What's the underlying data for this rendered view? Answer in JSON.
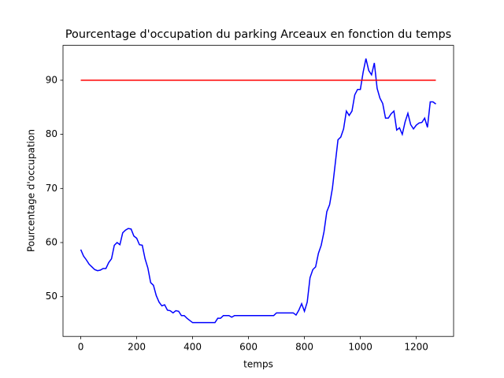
{
  "chart_data": {
    "type": "line",
    "title": "Pourcentage d'occupation du parking Arceaux en fonction du temps",
    "xlabel": "temps",
    "ylabel": "Pourcentage d'occupation",
    "xlim": [
      -63.5,
      1333.5
    ],
    "xticks": [
      0,
      200,
      400,
      600,
      800,
      1000,
      1200
    ],
    "ylim": [
      42.65,
      96.45
    ],
    "yticks": [
      50,
      60,
      70,
      80,
      90
    ],
    "series": [
      {
        "color": "#0000ff",
        "x": [
          0,
          10,
          20,
          30,
          40,
          50,
          60,
          70,
          80,
          90,
          100,
          110,
          120,
          130,
          140,
          150,
          160,
          170,
          180,
          190,
          200,
          210,
          220,
          230,
          240,
          250,
          260,
          270,
          280,
          290,
          300,
          310,
          320,
          330,
          340,
          350,
          360,
          370,
          380,
          390,
          400,
          410,
          420,
          430,
          440,
          450,
          460,
          470,
          480,
          490,
          500,
          510,
          520,
          530,
          540,
          550,
          560,
          570,
          580,
          590,
          600,
          610,
          620,
          630,
          640,
          650,
          660,
          670,
          680,
          690,
          700,
          710,
          720,
          730,
          740,
          750,
          760,
          770,
          780,
          790,
          800,
          810,
          820,
          830,
          840,
          850,
          860,
          870,
          880,
          890,
          900,
          910,
          920,
          930,
          940,
          950,
          960,
          970,
          980,
          990,
          1000,
          1010,
          1020,
          1030,
          1040,
          1050,
          1060,
          1070,
          1080,
          1090,
          1100,
          1110,
          1120,
          1130,
          1140,
          1150,
          1160,
          1170,
          1180,
          1190,
          1200,
          1210,
          1220,
          1230,
          1240,
          1250,
          1260,
          1270
        ],
        "values": [
          58.7,
          57.5,
          56.8,
          56,
          55.5,
          55,
          54.8,
          54.9,
          55.2,
          55.2,
          56.3,
          57,
          59.5,
          60,
          59.6,
          61.8,
          62.3,
          62.6,
          62.5,
          61.2,
          60.8,
          59.6,
          59.5,
          57,
          55.3,
          52.6,
          52.1,
          50.2,
          49,
          48.3,
          48.5,
          47.5,
          47.4,
          47,
          47.4,
          47.3,
          46.5,
          46.5,
          46,
          45.6,
          45.2,
          45.2,
          45.2,
          45.2,
          45.2,
          45.2,
          45.2,
          45.2,
          45.2,
          46,
          46,
          46.5,
          46.5,
          46.5,
          46.2,
          46.5,
          46.5,
          46.5,
          46.5,
          46.5,
          46.5,
          46.5,
          46.5,
          46.5,
          46.5,
          46.5,
          46.5,
          46.5,
          46.5,
          46.5,
          47,
          47,
          47,
          47,
          47,
          47,
          47,
          46.6,
          47.5,
          48.7,
          47.3,
          49,
          53.5,
          55,
          55.5,
          58,
          59.5,
          62,
          65.7,
          67,
          70,
          74.5,
          79,
          79.5,
          81,
          84.3,
          83.5,
          84.3,
          87.3,
          88.3,
          88.3,
          91.5,
          94,
          91.8,
          91,
          93.2,
          88.5,
          86.7,
          85.7,
          83,
          83,
          83.8,
          84.3,
          80.8,
          81.2,
          80,
          82.3,
          83.9,
          81.8,
          81,
          81.7,
          82.1,
          82.2,
          83,
          81.3,
          86,
          86,
          85.6
        ]
      },
      {
        "color": "#ff0000",
        "x": [
          0,
          1270
        ],
        "values": [
          90,
          90
        ]
      }
    ]
  }
}
